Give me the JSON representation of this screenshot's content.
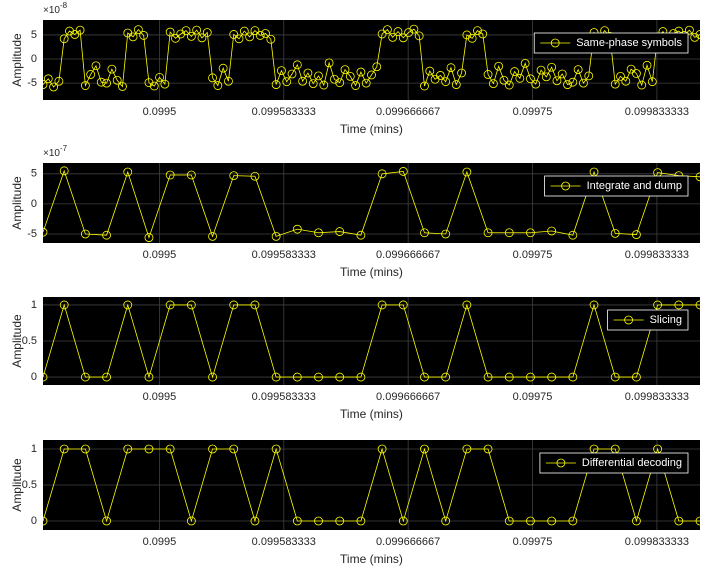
{
  "chart_data": [
    {
      "type": "line",
      "x": [
        0.099422,
        0.09942555,
        0.0994291,
        0.09943265,
        0.0994362,
        0.09943975,
        0.0994433,
        0.09944685,
        0.0994504,
        0.09945395,
        0.0994575,
        0.09946105,
        0.0994646,
        0.09946815,
        0.0994717,
        0.09947525,
        0.0994788,
        0.09948235,
        0.0994859,
        0.09948945,
        0.099493,
        0.09949655,
        0.0995001,
        0.09950365,
        0.0995072,
        0.09951075,
        0.0995143,
        0.09951785,
        0.0995214,
        0.09952495,
        0.0995285,
        0.09953205,
        0.0995356,
        0.09953915,
        0.0995427,
        0.09954625,
        0.0995498,
        0.09955335,
        0.0995569,
        0.09956045,
        0.099564,
        0.09956755,
        0.0995711,
        0.09957465,
        0.0995782,
        0.09958175,
        0.0995853,
        0.09958885,
        0.0995924,
        0.09959595,
        0.0995995,
        0.09960305,
        0.0996066,
        0.09961015,
        0.0996137,
        0.09961725,
        0.0996208,
        0.09962435,
        0.0996279,
        0.09963145,
        0.099635,
        0.09963855,
        0.0996421,
        0.09964565,
        0.0996492,
        0.09965275,
        0.0996563,
        0.09965985,
        0.0996634,
        0.09966695,
        0.0996705,
        0.09967405,
        0.0996776,
        0.09968115,
        0.0996847,
        0.09968825,
        0.0996918,
        0.09969535,
        0.0996989,
        0.09970245,
        0.099706,
        0.09970955,
        0.0997131,
        0.09971665,
        0.0997202,
        0.09972375,
        0.0997273,
        0.09973085,
        0.0997344,
        0.09973795,
        0.0997415,
        0.09974505,
        0.0997486,
        0.09975215,
        0.0997557,
        0.09975925,
        0.0997628,
        0.09976635,
        0.0997699,
        0.09977345,
        0.099777,
        0.09978055,
        0.0997841,
        0.09978765,
        0.0997912,
        0.09979475,
        0.0997983,
        0.09980185,
        0.0998054,
        0.09980895,
        0.0998125,
        0.09981605,
        0.0998196,
        0.09982315,
        0.0998267,
        0.09983025,
        0.0998338,
        0.09983735,
        0.0998409,
        0.09984445,
        0.099848,
        0.09985155,
        0.0998551,
        0.09985865,
        0.0998622
      ],
      "series": [
        {
          "name": "Same-phase symbols",
          "color": "#ffff00",
          "values": [
            -5.3,
            -4.1,
            -5.8,
            -4.6,
            4.2,
            5.8,
            5.1,
            6.0,
            -5.5,
            -3.2,
            -1.4,
            -4.8,
            -5.0,
            -2.1,
            -4.4,
            -5.7,
            5.4,
            4.6,
            6.1,
            4.9,
            -4.9,
            -5.6,
            -3.8,
            -5.2,
            5.6,
            4.3,
            5.2,
            5.9,
            4.7,
            6.0,
            4.4,
            5.5,
            -3.9,
            -5.5,
            -1.9,
            -4.6,
            5.1,
            4.2,
            5.8,
            4.6,
            5.9,
            4.9,
            5.3,
            4.1,
            -5.3,
            -2.4,
            -4.7,
            -3.1,
            -1.2,
            -4.6,
            -2.9,
            -5.1,
            -3.5,
            -5.4,
            -0.8,
            -4.2,
            -4.9,
            -2.2,
            -3.6,
            -5.5,
            -2.7,
            -5.0,
            -3.3,
            -1.6,
            5.2,
            6.1,
            4.5,
            5.7,
            4.4,
            5.5,
            6.2,
            4.8,
            -5.6,
            -2.5,
            -4.2,
            -3.4,
            -4.7,
            -1.8,
            -5.3,
            -2.9,
            5.0,
            4.3,
            5.9,
            5.2,
            -3.2,
            -5.1,
            -1.5,
            -4.4,
            -5.4,
            -2.6,
            -4.0,
            -0.9,
            -4.1,
            -5.2,
            -2.3,
            -3.7,
            -1.7,
            -4.5,
            -3.1,
            -5.3,
            -4.8,
            -2.2,
            -5.0,
            -3.5,
            5.5,
            4.4,
            5.9,
            4.7,
            -5.2,
            -3.6,
            -4.6,
            -2.1,
            -3.0,
            -5.4,
            -1.3,
            -4.7,
            4.6,
            5.7,
            4.2,
            5.3,
            5.8,
            4.9,
            6.0,
            4.5,
            5.1
          ]
        }
      ],
      "xlim": [
        0.099422,
        0.0998622
      ],
      "ylim": [
        -8.5,
        8.1
      ],
      "xticks": [
        0.0995,
        0.099583333,
        0.099666667,
        0.09975,
        0.099833333
      ],
      "yticks": [
        -5,
        0,
        5
      ],
      "xlabel": "Time (mins)",
      "ylabel": "Amplitude",
      "y_exponent_base": "×10",
      "y_exponent": "-8",
      "grid": true,
      "legend": "top-right",
      "marker": "circle"
    },
    {
      "type": "line",
      "x": [
        0.099422,
        0.0994362,
        0.0994504,
        0.0994646,
        0.0994788,
        0.099493,
        0.0995072,
        0.0995214,
        0.0995356,
        0.0995498,
        0.099564,
        0.0995782,
        0.0995924,
        0.0996066,
        0.0996208,
        0.099635,
        0.0996492,
        0.0996634,
        0.0996776,
        0.0996918,
        0.099706,
        0.0997202,
        0.0997344,
        0.0997486,
        0.0997628,
        0.099777,
        0.0997912,
        0.0998054,
        0.0998196,
        0.0998338,
        0.099848,
        0.0998622
      ],
      "series": [
        {
          "name": "Integrate and dump",
          "color": "#ffff00",
          "values": [
            -4.7,
            5.5,
            -5,
            -5.2,
            5.3,
            -5.6,
            4.8,
            4.8,
            -5.4,
            4.7,
            4.6,
            -5.4,
            -4.2,
            -4.8,
            -4.6,
            -5.2,
            5,
            5.4,
            -4.8,
            -5,
            5.3,
            -4.8,
            -4.8,
            -4.8,
            -4.5,
            -5.2,
            5.3,
            -4.9,
            -5.1,
            5.2,
            4.7,
            4.5
          ]
        }
      ],
      "xlim": [
        0.099422,
        0.0998622
      ],
      "ylim": [
        -6.5,
        6.8
      ],
      "xticks": [
        0.0995,
        0.099583333,
        0.099666667,
        0.09975,
        0.099833333
      ],
      "yticks": [
        -5,
        0,
        5
      ],
      "xlabel": "Time (mins)",
      "ylabel": "Amplitude",
      "y_exponent_base": "×10",
      "y_exponent": "-7",
      "grid": true,
      "legend": "top-right",
      "marker": "circle"
    },
    {
      "type": "line",
      "x": [
        0.099422,
        0.0994362,
        0.0994504,
        0.0994646,
        0.0994788,
        0.099493,
        0.0995072,
        0.0995214,
        0.0995356,
        0.0995498,
        0.099564,
        0.0995782,
        0.0995924,
        0.0996066,
        0.0996208,
        0.099635,
        0.0996492,
        0.0996634,
        0.0996776,
        0.0996918,
        0.099706,
        0.0997202,
        0.0997344,
        0.0997486,
        0.0997628,
        0.099777,
        0.0997912,
        0.0998054,
        0.0998196,
        0.0998338,
        0.099848,
        0.0998622
      ],
      "series": [
        {
          "name": "Slicing",
          "color": "#ffff00",
          "values": [
            0,
            1,
            0,
            0,
            1,
            0,
            1,
            1,
            0,
            1,
            1,
            0,
            0,
            0,
            0,
            0,
            1,
            1,
            0,
            0,
            1,
            0,
            0,
            0,
            0,
            0,
            1,
            0,
            0,
            1,
            1,
            1
          ]
        }
      ],
      "xlim": [
        0.099422,
        0.0998622
      ],
      "ylim": [
        -0.11,
        1.11
      ],
      "xticks": [
        0.0995,
        0.099583333,
        0.099666667,
        0.09975,
        0.099833333
      ],
      "yticks": [
        0,
        0.5,
        1
      ],
      "xlabel": "Time (mins)",
      "ylabel": "Amplitude",
      "grid": true,
      "legend": "top-right",
      "marker": "circle"
    },
    {
      "type": "line",
      "x": [
        0.099422,
        0.0994362,
        0.0994504,
        0.0994646,
        0.0994788,
        0.099493,
        0.0995072,
        0.0995214,
        0.0995356,
        0.0995498,
        0.099564,
        0.0995782,
        0.0995924,
        0.0996066,
        0.0996208,
        0.099635,
        0.0996492,
        0.0996634,
        0.0996776,
        0.0996918,
        0.099706,
        0.0997202,
        0.0997344,
        0.0997486,
        0.0997628,
        0.099777,
        0.0997912,
        0.0998054,
        0.0998196,
        0.0998338,
        0.099848,
        0.0998622
      ],
      "series": [
        {
          "name": "Differential decoding",
          "color": "#ffff00",
          "values": [
            0,
            1,
            1,
            0,
            1,
            1,
            1,
            0,
            1,
            1,
            0,
            1,
            0,
            0,
            0,
            0,
            1,
            0,
            1,
            0,
            1,
            1,
            0,
            0,
            0,
            0,
            1,
            1,
            0,
            1,
            0,
            0
          ]
        }
      ],
      "xlim": [
        0.099422,
        0.0998622
      ],
      "ylim": [
        -0.125,
        1.125
      ],
      "xticks": [
        0.0995,
        0.099583333,
        0.099666667,
        0.09975,
        0.099833333
      ],
      "yticks": [
        0,
        0.5,
        1
      ],
      "xlabel": "Time (mins)",
      "ylabel": "Amplitude",
      "grid": true,
      "legend": "top-right",
      "marker": "circle"
    }
  ]
}
